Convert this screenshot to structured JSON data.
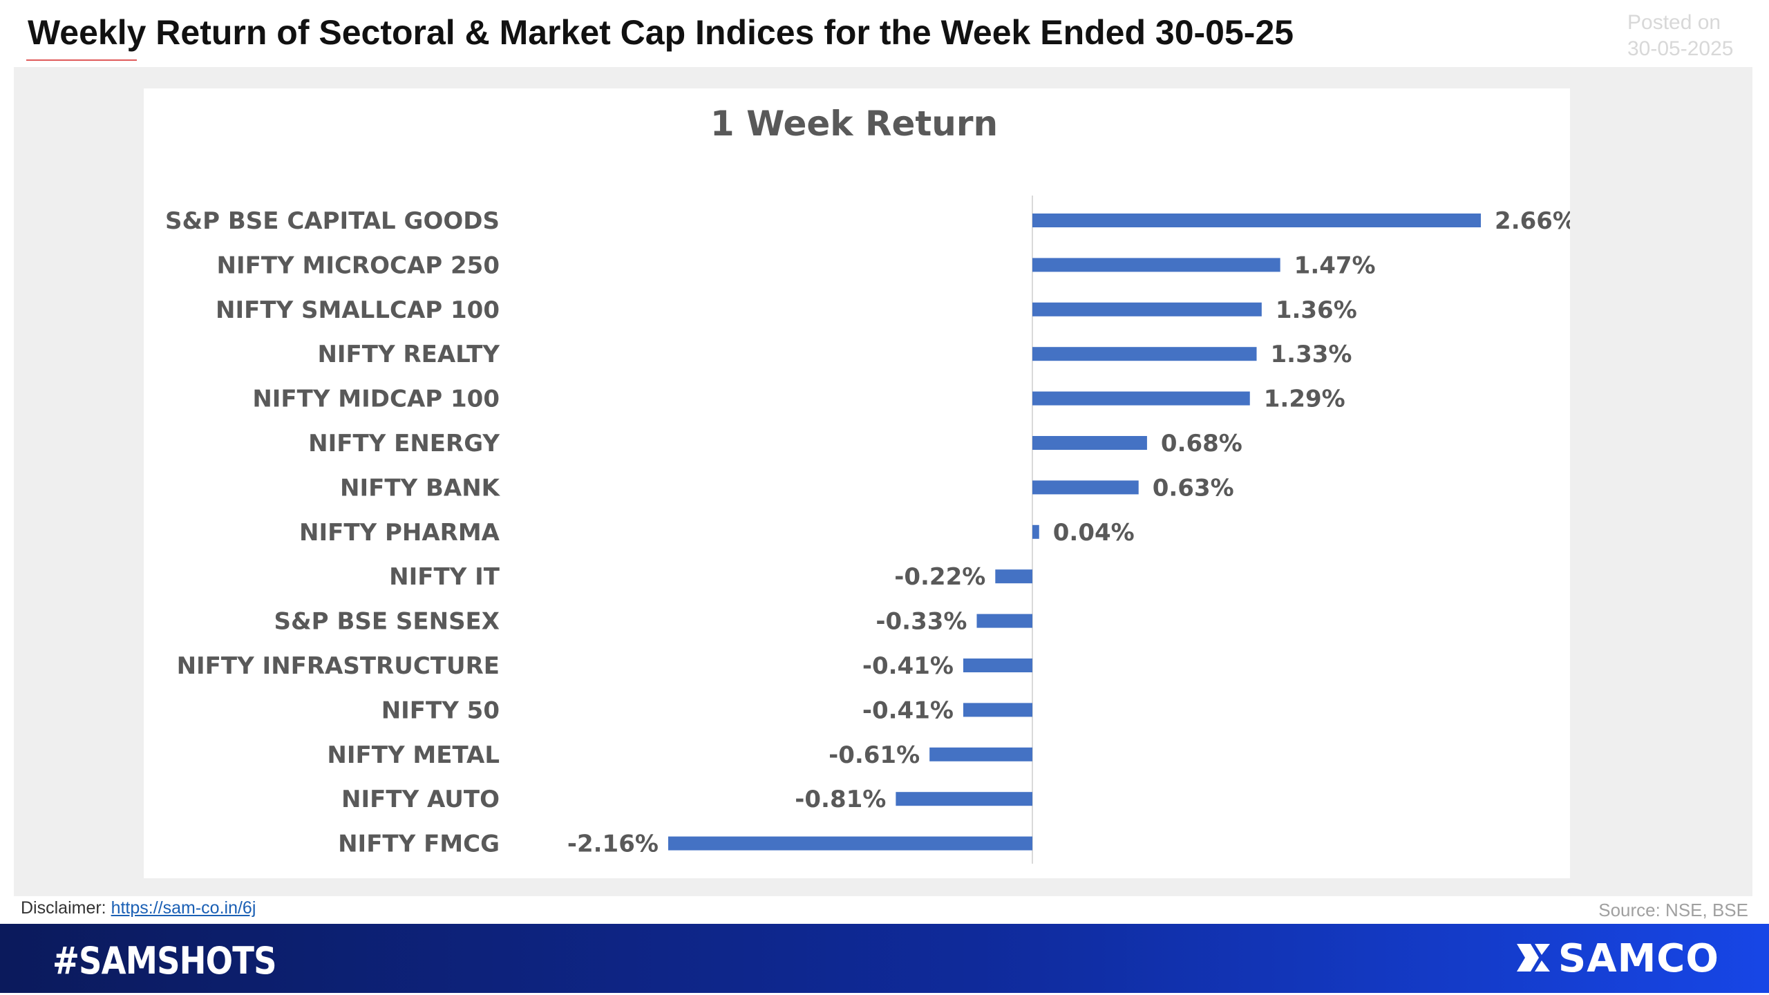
{
  "header": {
    "title": "Weekly Return of Sectoral & Market Cap Indices for the Week Ended 30-05-25",
    "posted_label": "Posted on",
    "posted_date": "30-05-2025"
  },
  "footer": {
    "disclaimer_label": "Disclaimer:",
    "disclaimer_link": "https://sam-co.in/6j",
    "source": "Source: NSE, BSE",
    "hashtag": "#SAMSHOTS",
    "brand": "SAMCO"
  },
  "colors": {
    "bar": "#4472c4",
    "footer_dark": "#0b1a5c",
    "footer_light": "#1746e6",
    "text": "#595959"
  },
  "chart_data": {
    "type": "bar",
    "orientation": "horizontal",
    "title": "1 Week Return",
    "xlabel": "",
    "ylabel": "",
    "unit": "%",
    "categories": [
      "S&P BSE CAPITAL GOODS",
      "NIFTY MICROCAP 250",
      "NIFTY SMALLCAP 100",
      "NIFTY REALTY",
      "NIFTY MIDCAP 100",
      "NIFTY ENERGY",
      "NIFTY BANK",
      "NIFTY PHARMA",
      "NIFTY IT",
      "S&P BSE SENSEX",
      "NIFTY INFRASTRUCTURE",
      "NIFTY 50",
      "NIFTY METAL",
      "NIFTY AUTO",
      "NIFTY FMCG"
    ],
    "values": [
      2.66,
      1.47,
      1.36,
      1.33,
      1.29,
      0.68,
      0.63,
      0.04,
      -0.22,
      -0.33,
      -0.41,
      -0.41,
      -0.61,
      -0.81,
      -2.16
    ],
    "data_labels": [
      "2.66%",
      "1.47%",
      "1.36%",
      "1.33%",
      "1.29%",
      "0.68%",
      "0.63%",
      "0.04%",
      "-0.22%",
      "-0.33%",
      "-0.41%",
      "-0.41%",
      "-0.61%",
      "-0.81%",
      "-2.16%"
    ],
    "xlim": [
      -2.16,
      2.66
    ],
    "grid": false,
    "legend": "none"
  }
}
